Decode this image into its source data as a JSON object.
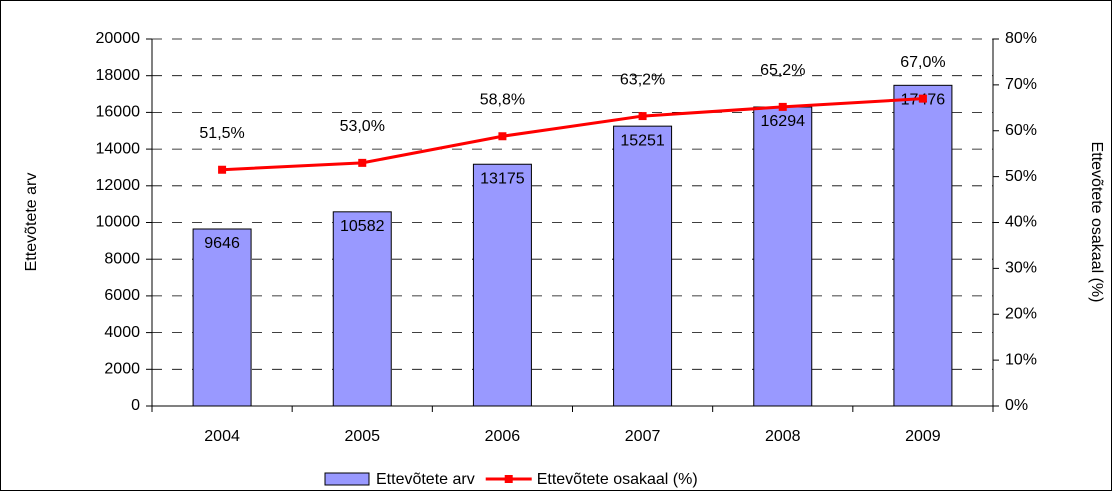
{
  "chart_data": {
    "type": "bar",
    "categories": [
      "2004",
      "2005",
      "2006",
      "2007",
      "2008",
      "2009"
    ],
    "ylabel": "Ettevõtete arv",
    "y2label": "Ettevõtete osakaal (%)",
    "ylim": [
      0,
      20000
    ],
    "yticks": [
      0,
      2000,
      4000,
      6000,
      8000,
      10000,
      12000,
      14000,
      16000,
      18000,
      20000
    ],
    "y2lim": [
      0,
      80
    ],
    "y2ticks": [
      {
        "value": 0,
        "label": "0%"
      },
      {
        "value": 10,
        "label": "10%"
      },
      {
        "value": 20,
        "label": "20%"
      },
      {
        "value": 30,
        "label": "30%"
      },
      {
        "value": 40,
        "label": "40%"
      },
      {
        "value": 50,
        "label": "50%"
      },
      {
        "value": 60,
        "label": "60%"
      },
      {
        "value": 70,
        "label": "70%"
      },
      {
        "value": 80,
        "label": "80%"
      }
    ],
    "grid": true,
    "legend": "bottom",
    "series": [
      {
        "name": "Ettevõtete arv",
        "type": "bar",
        "color": "#9999ff",
        "values": [
          9646,
          10582,
          13175,
          15251,
          16294,
          17476
        ]
      },
      {
        "name": "Ettevõtete osakaal (%)",
        "type": "line",
        "axis": "y2",
        "color": "#ff0000",
        "values": [
          51.5,
          53.0,
          58.8,
          63.2,
          65.2,
          67.0
        ],
        "value_labels": [
          "51,5%",
          "53,0%",
          "58,8%",
          "63,2%",
          "65,2%",
          "67,0%"
        ]
      }
    ]
  }
}
